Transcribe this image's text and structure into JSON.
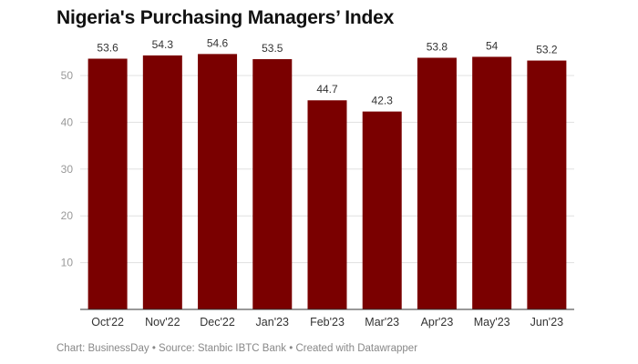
{
  "chart_data": {
    "type": "bar",
    "title": "Nigeria's Purchasing Managers’ Index",
    "xlabel": "",
    "ylabel": "",
    "categories": [
      "Oct'22",
      "Nov'22",
      "Dec'22",
      "Jan'23",
      "Feb'23",
      "Mar'23",
      "Apr'23",
      "May'23",
      "Jun'23"
    ],
    "values": [
      53.6,
      54.3,
      54.6,
      53.5,
      44.7,
      42.3,
      53.8,
      54,
      53.2
    ],
    "value_labels": [
      "53.6",
      "54.3",
      "54.6",
      "53.5",
      "44.7",
      "42.3",
      "53.8",
      "54",
      "53.2"
    ],
    "yticks": [
      10,
      20,
      30,
      40,
      50
    ],
    "ylim": [
      0,
      55
    ],
    "grid": true,
    "legend": "none",
    "bar_color": "#7a0000"
  },
  "footer": {
    "text": "Chart: BusinessDay • Source: Stanbic IBTC Bank • Created with Datawrapper"
  }
}
